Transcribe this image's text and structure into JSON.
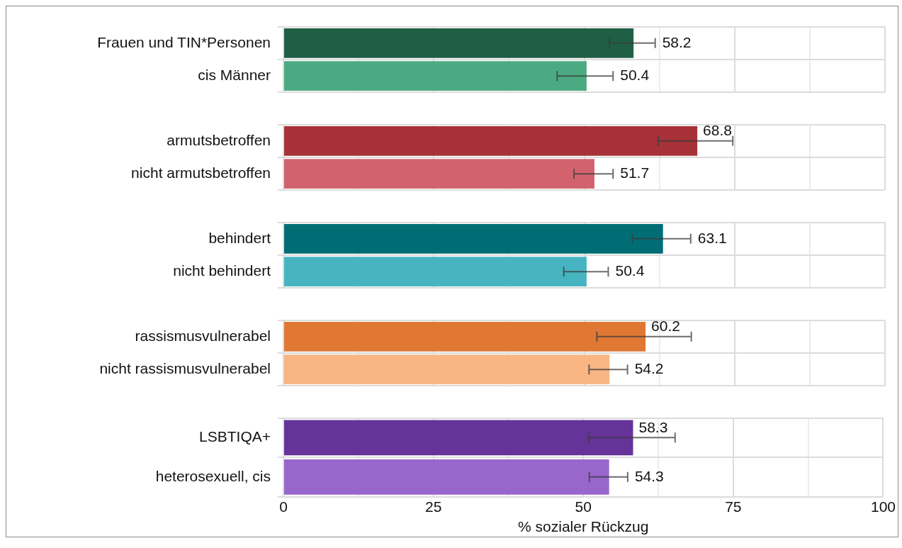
{
  "chart_data": [
    {
      "type": "bar",
      "orientation": "horizontal",
      "categories": [
        "Frauen und TIN*Personen",
        "cis Männer"
      ],
      "values": [
        58.2,
        50.4
      ],
      "colors": [
        "#1f5f46",
        "#4caa82"
      ],
      "errors": [
        [
          54.2,
          61.8
        ],
        [
          45.5,
          54.8
        ]
      ],
      "xlim": [
        0,
        100
      ],
      "xticks": [
        0,
        {
          "value": 12.5,
          "label": null
        },
        25,
        {
          "value": 37.5,
          "label": null
        },
        50,
        {
          "value": 62.5,
          "label": null
        },
        75,
        {
          "value": 87.5,
          "label": null
        },
        100
      ],
      "grid": true,
      "data_labels": true,
      "tick_labels": "y"
    },
    {
      "type": "bar",
      "orientation": "horizontal",
      "categories": [
        "armutsbetroffen",
        "nicht armutsbetroffen"
      ],
      "values": [
        68.8,
        51.7
      ],
      "colors": [
        "#a63238",
        "#d2636e"
      ],
      "errors": [
        [
          62.3,
          74.7
        ],
        [
          48.3,
          54.8
        ]
      ],
      "xlim": [
        0,
        100
      ],
      "xticks": [
        0,
        {
          "value": 12.5,
          "label": null
        },
        25,
        {
          "value": 37.5,
          "label": null
        },
        50,
        {
          "value": 62.5,
          "label": null
        },
        75,
        {
          "value": 87.5,
          "label": null
        },
        100
      ],
      "grid": true,
      "data_labels": true,
      "tick_labels": "y"
    },
    {
      "type": "bar",
      "orientation": "horizontal",
      "categories": [
        "behindert",
        "nicht behindert"
      ],
      "values": [
        63.1,
        50.4
      ],
      "colors": [
        "#006d75",
        "#46b5c1"
      ],
      "errors": [
        [
          58.0,
          67.7
        ],
        [
          46.6,
          54.0
        ]
      ],
      "xlim": [
        0,
        100
      ],
      "xticks": [
        0,
        {
          "value": 12.5,
          "label": null
        },
        25,
        {
          "value": 37.5,
          "label": null
        },
        50,
        {
          "value": 62.5,
          "label": null
        },
        75,
        {
          "value": 87.5,
          "label": null
        },
        100
      ],
      "grid": true,
      "data_labels": true,
      "tick_labels": "y"
    },
    {
      "type": "bar",
      "orientation": "horizontal",
      "categories": [
        "rassismusvulnerabel",
        "nicht rassismusvulnerabel"
      ],
      "values": [
        60.2,
        54.2
      ],
      "colors": [
        "#e07833",
        "#f9b583"
      ],
      "errors": [
        [
          52.1,
          67.8
        ],
        [
          50.8,
          57.2
        ]
      ],
      "xlim": [
        0,
        100
      ],
      "xticks": [
        0,
        {
          "value": 12.5,
          "label": null
        },
        25,
        {
          "value": 37.5,
          "label": null
        },
        50,
        {
          "value": 62.5,
          "label": null
        },
        75,
        {
          "value": 87.5,
          "label": null
        },
        100
      ],
      "grid": true,
      "data_labels": true,
      "tick_labels": "y"
    },
    {
      "type": "bar",
      "orientation": "horizontal",
      "categories": [
        "LSBTIQA+",
        "heterosexuell, cis"
      ],
      "values": [
        58.3,
        54.3
      ],
      "colors": [
        "#663399",
        "#9966cc"
      ],
      "errors": [
        [
          50.9,
          65.3
        ],
        [
          51.0,
          57.4
        ]
      ],
      "xlim": [
        0,
        100
      ],
      "xticks": [
        0,
        {
          "value": 12.5,
          "label": null
        },
        25,
        {
          "value": 37.5,
          "label": null
        },
        50,
        {
          "value": 62.5,
          "label": null
        },
        75,
        {
          "value": 87.5,
          "label": null
        },
        100
      ],
      "grid": true,
      "data_labels": true,
      "xlabel": "% sozialer Rückzug"
    }
  ]
}
